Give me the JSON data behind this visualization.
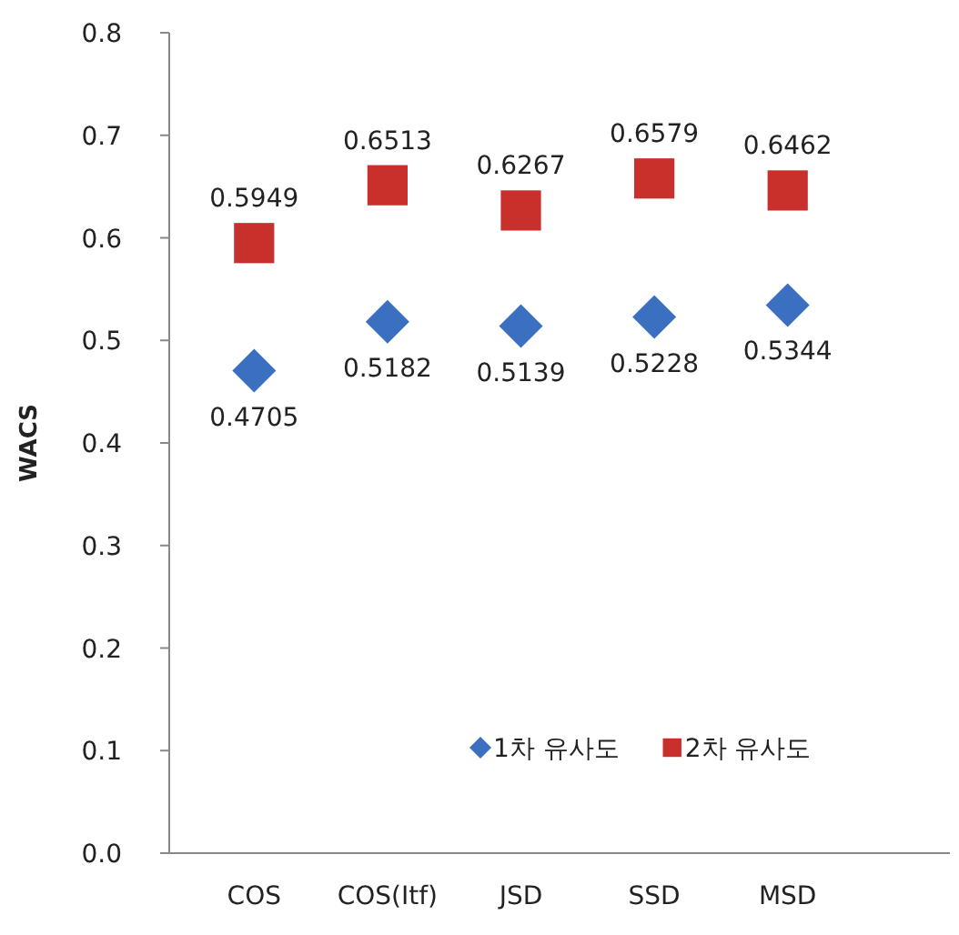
{
  "chart_data": {
    "type": "scatter",
    "ylabel": "WACS",
    "categories": [
      "COS",
      "COS(Itf)",
      "JSD",
      "SSD",
      "MSD"
    ],
    "series": [
      {
        "name": "1차 유사도",
        "color": "#3b6fc0",
        "marker": "diamond",
        "values": [
          0.4705,
          0.5182,
          0.5139,
          0.5228,
          0.5344
        ]
      },
      {
        "name": "2차 유사도",
        "color": "#c8302c",
        "marker": "square",
        "values": [
          0.5949,
          0.6513,
          0.6267,
          0.6579,
          0.6462
        ]
      }
    ],
    "ylim": [
      0,
      0.8
    ],
    "yticks": [
      {
        "value": 0,
        "label": "0.0"
      },
      0.1,
      0.2,
      0.3,
      0.4,
      0.5,
      0.6,
      0.7,
      0.8
    ],
    "data_labels": true,
    "legend": "bottom right",
    "grid": false
  }
}
